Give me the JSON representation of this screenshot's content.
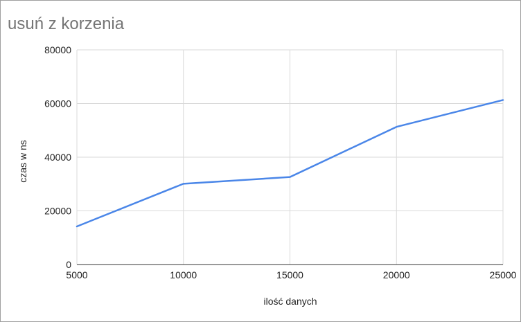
{
  "chart_data": {
    "type": "line",
    "title": "usuń z korzenia",
    "xlabel": "ilość danych",
    "ylabel": "czas w ns",
    "x": [
      5000,
      10000,
      15000,
      20000,
      25000
    ],
    "xlim": [
      5000,
      25000
    ],
    "ylim": [
      0,
      80000
    ],
    "xticks": [
      "5000",
      "10000",
      "15000",
      "20000",
      "25000"
    ],
    "yticks": [
      "0",
      "20000",
      "40000",
      "60000",
      "80000"
    ],
    "grid": true,
    "legend": "none",
    "series": [
      {
        "values": [
          14200,
          30100,
          32600,
          51300,
          61300
        ],
        "color": "#4a86e8"
      }
    ],
    "colors": {
      "gridline": "#d9d9d9",
      "baseline": "#333333",
      "title": "#757575"
    }
  }
}
